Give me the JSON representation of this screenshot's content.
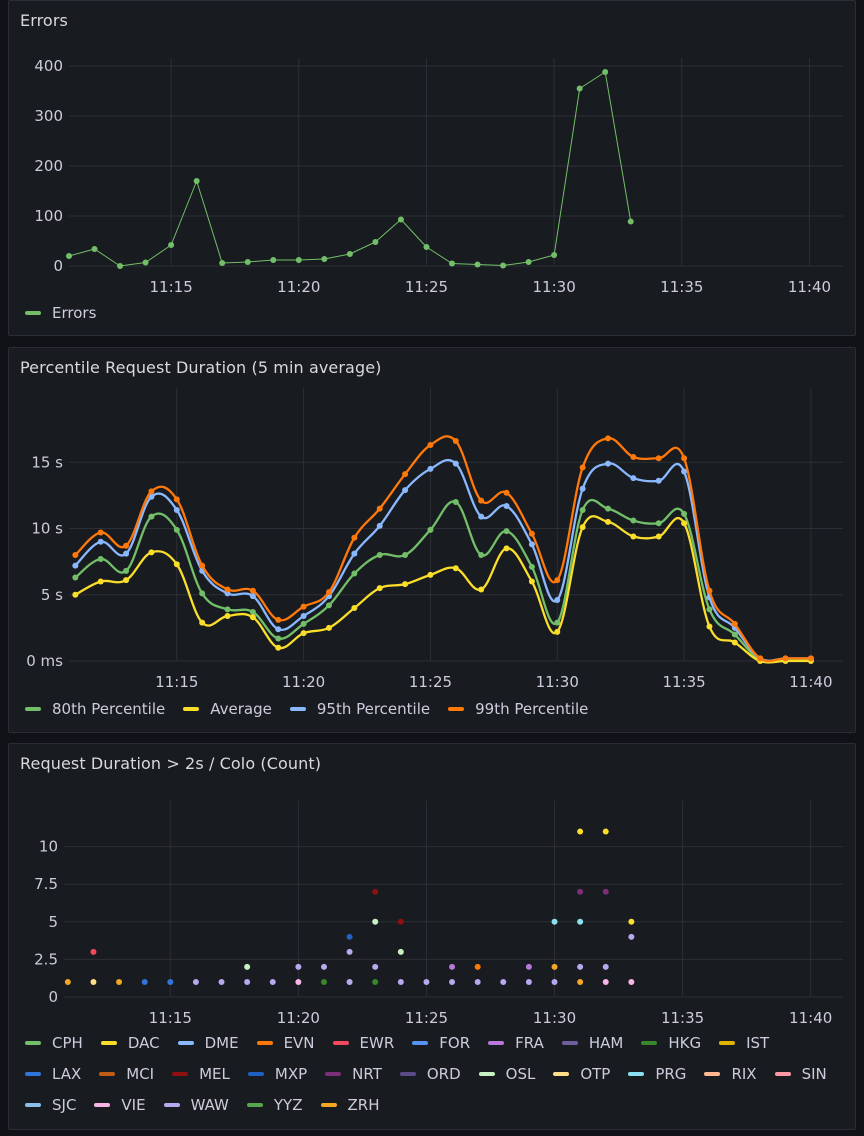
{
  "panels": [
    {
      "title": "Errors"
    },
    {
      "title": "Percentile Request Duration (5 min average)"
    },
    {
      "title": "Request Duration > 2s / Colo (Count)"
    }
  ],
  "chart_data": [
    {
      "type": "line",
      "title": "Errors",
      "x_ticks": [
        "11:15",
        "11:20",
        "11:25",
        "11:30",
        "11:35",
        "11:40"
      ],
      "x_range": [
        11.0,
        41.0
      ],
      "y_ticks": [
        "0",
        "100",
        "200",
        "300",
        "400"
      ],
      "ylim": [
        0,
        400
      ],
      "legend": "bottom",
      "series": [
        {
          "name": "Errors",
          "color": "#73bf69",
          "x": [
            11,
            12,
            13,
            14,
            15,
            16,
            17,
            18,
            19,
            20,
            21,
            22,
            23,
            24,
            25,
            26,
            27,
            28,
            29,
            30,
            31,
            32,
            33
          ],
          "values": [
            20,
            34,
            0,
            7,
            42,
            170,
            6,
            8,
            12,
            12,
            14,
            24,
            48,
            93,
            38,
            5,
            3,
            1,
            8,
            22,
            355,
            388,
            89
          ]
        }
      ]
    },
    {
      "type": "line",
      "title": "Percentile Request Duration (5 min average)",
      "x_ticks": [
        "11:15",
        "11:20",
        "11:25",
        "11:30",
        "11:35",
        "11:40"
      ],
      "x_range": [
        10.75,
        40.95
      ],
      "y_ticks": [
        "0 ms",
        "5 s",
        "10 s",
        "15 s"
      ],
      "ylim": [
        0,
        20
      ],
      "legend": "bottom",
      "series": [
        {
          "name": "80th Percentile",
          "color": "#73bf69",
          "x": [
            11,
            12,
            13,
            14,
            15,
            16,
            17,
            18,
            19,
            20,
            21,
            22,
            23,
            24,
            25,
            26,
            27,
            28,
            29,
            30,
            31,
            32,
            33,
            34,
            35,
            36,
            37,
            38,
            39,
            40
          ],
          "values": [
            6.3,
            7.7,
            6.8,
            10.9,
            9.9,
            5.1,
            3.9,
            3.7,
            1.7,
            2.8,
            4.2,
            6.6,
            8.0,
            8.0,
            9.9,
            12.0,
            8.0,
            9.8,
            7.1,
            2.9,
            11.4,
            11.5,
            10.6,
            10.4,
            11.1,
            3.9,
            2.0,
            0.1,
            0.1,
            0.1
          ]
        },
        {
          "name": "Average",
          "color": "#fade2a",
          "x": [
            11,
            12,
            13,
            14,
            15,
            16,
            17,
            18,
            19,
            20,
            21,
            22,
            23,
            24,
            25,
            26,
            27,
            28,
            29,
            30,
            31,
            32,
            33,
            34,
            35,
            36,
            37,
            38,
            39,
            40
          ],
          "values": [
            5.0,
            6.0,
            6.1,
            8.2,
            7.3,
            2.9,
            3.4,
            3.3,
            1.0,
            2.1,
            2.5,
            4.0,
            5.5,
            5.8,
            6.5,
            7.0,
            5.4,
            8.5,
            6.0,
            2.2,
            10.1,
            10.5,
            9.4,
            9.4,
            10.4,
            2.6,
            1.4,
            0.0,
            0.0,
            0.0
          ]
        },
        {
          "name": "95th Percentile",
          "color": "#8ab8ff",
          "x": [
            11,
            12,
            13,
            14,
            15,
            16,
            17,
            18,
            19,
            20,
            21,
            22,
            23,
            24,
            25,
            26,
            27,
            28,
            29,
            30,
            31,
            32,
            33,
            34,
            35,
            36,
            37,
            38,
            39,
            40
          ],
          "values": [
            7.2,
            9.0,
            8.1,
            12.4,
            11.4,
            6.8,
            5.1,
            4.9,
            2.4,
            3.4,
            4.9,
            8.1,
            10.2,
            12.9,
            14.5,
            14.9,
            10.9,
            11.7,
            8.8,
            4.6,
            13.0,
            14.9,
            13.8,
            13.6,
            14.3,
            4.8,
            2.5,
            0.2,
            0.2,
            0.2
          ]
        },
        {
          "name": "99th Percentile",
          "color": "#ff780a",
          "x": [
            11,
            12,
            13,
            14,
            15,
            16,
            17,
            18,
            19,
            20,
            21,
            22,
            23,
            24,
            25,
            26,
            27,
            28,
            29,
            30,
            31,
            32,
            33,
            34,
            35,
            36,
            37,
            38,
            39,
            40
          ],
          "values": [
            8.0,
            9.7,
            8.7,
            12.8,
            12.2,
            7.2,
            5.4,
            5.3,
            3.1,
            4.1,
            5.2,
            9.3,
            11.5,
            14.1,
            16.3,
            16.6,
            12.1,
            12.7,
            9.6,
            6.1,
            14.6,
            16.8,
            15.4,
            15.3,
            15.3,
            5.3,
            2.8,
            0.2,
            0.2,
            0.2
          ]
        }
      ]
    },
    {
      "type": "scatter",
      "title": "Request Duration > 2s / Colo (Count)",
      "x_ticks": [
        "11:15",
        "11:20",
        "11:25",
        "11:30",
        "11:35",
        "11:40"
      ],
      "x_range": [
        10.85,
        40.95
      ],
      "y_ticks": [
        "0",
        "2.5",
        "5",
        "7.5",
        "10"
      ],
      "ylim": [
        0,
        12.5
      ],
      "legend": "bottom",
      "series": [
        {
          "name": "CPH",
          "color": "#73bf69",
          "x": [],
          "values": []
        },
        {
          "name": "DAC",
          "color": "#fade2a",
          "x": [
            31,
            32,
            33
          ],
          "values": [
            11,
            11,
            5
          ]
        },
        {
          "name": "DME",
          "color": "#8ab8ff",
          "x": [],
          "values": []
        },
        {
          "name": "EVN",
          "color": "#ff780a",
          "x": [
            27
          ],
          "values": [
            2
          ]
        },
        {
          "name": "EWR",
          "color": "#f2495c",
          "x": [
            12
          ],
          "values": [
            3
          ]
        },
        {
          "name": "FOR",
          "color": "#5794f2",
          "x": [],
          "values": []
        },
        {
          "name": "FRA",
          "color": "#b877d9",
          "x": [
            26,
            29
          ],
          "values": [
            2,
            2
          ]
        },
        {
          "name": "HAM",
          "color": "#705da0",
          "x": [],
          "values": []
        },
        {
          "name": "HKG",
          "color": "#37872d",
          "x": [
            21,
            22,
            23
          ],
          "values": [
            1,
            1,
            1
          ]
        },
        {
          "name": "IST",
          "color": "#e0b400",
          "x": [],
          "values": []
        },
        {
          "name": "LAX",
          "color": "#3274d9",
          "x": [
            14,
            15
          ],
          "values": [
            1,
            1
          ]
        },
        {
          "name": "MCI",
          "color": "#c15c17",
          "x": [],
          "values": []
        },
        {
          "name": "MEL",
          "color": "#8f1010",
          "x": [
            23,
            24
          ],
          "values": [
            7,
            5
          ]
        },
        {
          "name": "MXP",
          "color": "#1f60c4",
          "x": [
            22
          ],
          "values": [
            4
          ]
        },
        {
          "name": "NRT",
          "color": "#7c2e7a",
          "x": [
            31,
            32
          ],
          "values": [
            7,
            7
          ]
        },
        {
          "name": "ORD",
          "color": "#5a4a8a",
          "x": [],
          "values": []
        },
        {
          "name": "OSL",
          "color": "#c8f2c2",
          "x": [
            18,
            23,
            24
          ],
          "values": [
            2,
            5,
            3
          ]
        },
        {
          "name": "OTP",
          "color": "#ffe08a",
          "x": [
            12
          ],
          "values": [
            1
          ]
        },
        {
          "name": "PRG",
          "color": "#8ae0f0",
          "x": [
            30,
            31
          ],
          "values": [
            5,
            5
          ]
        },
        {
          "name": "RIX",
          "color": "#ffb890",
          "x": [],
          "values": []
        },
        {
          "name": "SIN",
          "color": "#ff9aa5",
          "x": [],
          "values": []
        },
        {
          "name": "SJC",
          "color": "#8bc0e6",
          "x": [],
          "values": []
        },
        {
          "name": "VIE",
          "color": "#f7b5e8",
          "x": [
            20,
            32,
            33
          ],
          "values": [
            1,
            1,
            1
          ]
        },
        {
          "name": "WAW",
          "color": "#b8a8f0",
          "x": [
            16,
            17,
            18,
            19,
            20,
            21,
            22,
            22,
            23,
            24,
            25,
            26,
            27,
            28,
            29,
            30,
            31,
            32,
            33
          ],
          "values": [
            1,
            1,
            1,
            1,
            2,
            2,
            3,
            1,
            2,
            1,
            1,
            1,
            1,
            1,
            1,
            1,
            2,
            2,
            4
          ]
        },
        {
          "name": "YYZ",
          "color": "#56a64b",
          "x": [],
          "values": []
        },
        {
          "name": "ZRH",
          "color": "#f5a623",
          "x": [
            11,
            13,
            30,
            31
          ],
          "values": [
            1,
            1,
            2,
            1
          ]
        }
      ]
    }
  ]
}
